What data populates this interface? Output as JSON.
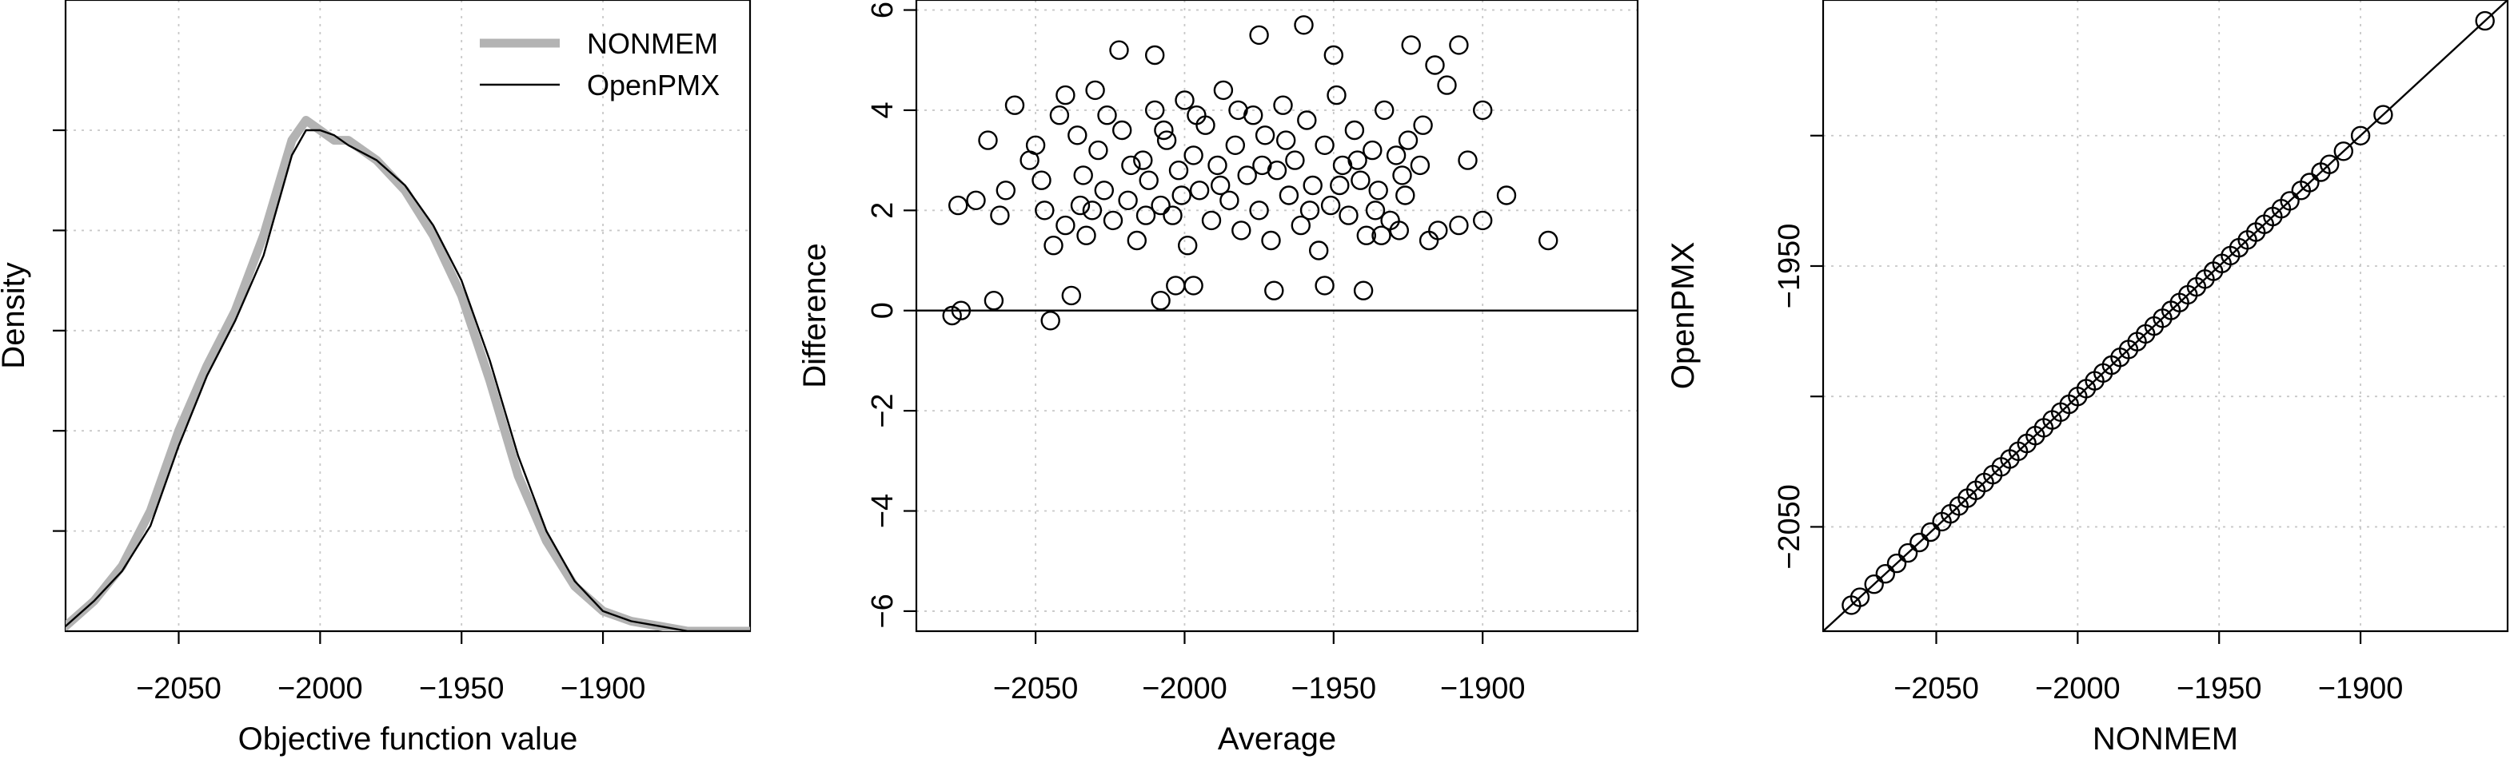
{
  "chart_data": [
    {
      "type": "line",
      "panel": "density",
      "xlabel": "Objective function value",
      "ylabel": "Density",
      "xlim": [
        -2090,
        -1848
      ],
      "ylim": [
        0,
        0.0126
      ],
      "xticks": [
        -2050,
        -2000,
        -1950,
        -1900
      ],
      "xtick_labels": [
        "−2050",
        "−2000",
        "−1950",
        "−1900"
      ],
      "yticks": [
        0.002,
        0.004,
        0.006,
        0.008,
        0.01
      ],
      "show_y_tick_labels": false,
      "grid": true,
      "legend": {
        "position": "top-right",
        "entries": [
          "NONMEM",
          "OpenPMX"
        ]
      },
      "series": [
        {
          "name": "NONMEM",
          "color": "#b3b3b3",
          "x": [
            -2090,
            -2080,
            -2070,
            -2060,
            -2050,
            -2040,
            -2030,
            -2020,
            -2010,
            -2005,
            -2000,
            -1995,
            -1990,
            -1980,
            -1970,
            -1960,
            -1950,
            -1940,
            -1930,
            -1920,
            -1910,
            -1900,
            -1890,
            -1880,
            -1870,
            -1860,
            -1848
          ],
          "y": [
            0.0001,
            0.0006,
            0.0013,
            0.0024,
            0.004,
            0.0053,
            0.0064,
            0.0079,
            0.0098,
            0.0102,
            0.01,
            0.0098,
            0.0098,
            0.0094,
            0.0088,
            0.0079,
            0.0067,
            0.005,
            0.0031,
            0.0018,
            0.0009,
            0.0004,
            0.0002,
            0.0001,
            0.0,
            0.0,
            0.0
          ]
        },
        {
          "name": "OpenPMX",
          "color": "#000000",
          "x": [
            -2090,
            -2080,
            -2070,
            -2060,
            -2050,
            -2040,
            -2030,
            -2020,
            -2010,
            -2005,
            -2000,
            -1995,
            -1990,
            -1980,
            -1970,
            -1960,
            -1950,
            -1940,
            -1930,
            -1920,
            -1910,
            -1900,
            -1890,
            -1880,
            -1870,
            -1860,
            -1848
          ],
          "y": [
            0.0001,
            0.0006,
            0.0012,
            0.0021,
            0.0037,
            0.0051,
            0.0062,
            0.0075,
            0.0095,
            0.01,
            0.01,
            0.0099,
            0.0097,
            0.0094,
            0.0089,
            0.0081,
            0.007,
            0.0054,
            0.0035,
            0.002,
            0.001,
            0.0004,
            0.0002,
            0.0001,
            0.0,
            0.0,
            0.0
          ]
        }
      ]
    },
    {
      "type": "scatter",
      "panel": "bland-altman",
      "xlabel": "Average",
      "ylabel": "Difference",
      "xlim": [
        -2090,
        -1848
      ],
      "ylim": [
        -6.4,
        6.2
      ],
      "xticks": [
        -2050,
        -2000,
        -1950,
        -1900
      ],
      "xtick_labels": [
        "−2050",
        "−2000",
        "−1950",
        "−1900"
      ],
      "yticks": [
        -6,
        -4,
        -2,
        0,
        2,
        4,
        6
      ],
      "ytick_labels": [
        "−6",
        "−4",
        "−2",
        "0",
        "2",
        "4",
        "6"
      ],
      "hline": 0,
      "grid": true,
      "points": [
        [
          -2078,
          -0.1
        ],
        [
          -2075,
          0.0
        ],
        [
          -2076,
          2.1
        ],
        [
          -2070,
          2.2
        ],
        [
          -2066,
          3.4
        ],
        [
          -2064,
          0.2
        ],
        [
          -2062,
          1.9
        ],
        [
          -2060,
          2.4
        ],
        [
          -2057,
          4.1
        ],
        [
          -2045,
          -0.2
        ],
        [
          -2038,
          0.3
        ],
        [
          -1878,
          1.4
        ],
        [
          -1892,
          2.3
        ],
        [
          -1900,
          4.0
        ],
        [
          -1905,
          3.0
        ],
        [
          -1908,
          5.3
        ],
        [
          -1912,
          4.5
        ],
        [
          -1916,
          4.9
        ],
        [
          -1920,
          3.7
        ],
        [
          -1924,
          5.3
        ],
        [
          -2022,
          5.2
        ],
        [
          -2010,
          5.1
        ],
        [
          -1960,
          5.7
        ],
        [
          -1975,
          5.5
        ],
        [
          -1950,
          5.1
        ],
        [
          -2040,
          4.3
        ],
        [
          -2030,
          4.4
        ],
        [
          -2008,
          0.2
        ],
        [
          -2003,
          0.5
        ],
        [
          -1997,
          0.5
        ],
        [
          -1970,
          0.4
        ],
        [
          -1953,
          0.5
        ],
        [
          -1940,
          0.4
        ],
        [
          -1934,
          1.5
        ],
        [
          -1928,
          1.6
        ],
        [
          -1915,
          1.6
        ],
        [
          -1908,
          1.7
        ],
        [
          -1900,
          1.8
        ],
        [
          -2044,
          1.3
        ],
        [
          -2040,
          1.7
        ],
        [
          -2052,
          3.0
        ],
        [
          -2048,
          2.6
        ],
        [
          -2035,
          2.1
        ],
        [
          -2050,
          3.3
        ],
        [
          -2047,
          2.0
        ],
        [
          -2042,
          3.9
        ],
        [
          -2034,
          2.7
        ],
        [
          -2033,
          1.5
        ],
        [
          -2029,
          3.2
        ],
        [
          -2027,
          2.4
        ],
        [
          -2024,
          1.8
        ],
        [
          -2021,
          3.6
        ],
        [
          -2019,
          2.2
        ],
        [
          -2016,
          1.4
        ],
        [
          -2014,
          3.0
        ],
        [
          -2012,
          2.6
        ],
        [
          -2010,
          4.0
        ],
        [
          -2008,
          2.1
        ],
        [
          -2006,
          3.4
        ],
        [
          -2004,
          1.9
        ],
        [
          -2002,
          2.8
        ],
        [
          -2000,
          4.2
        ],
        [
          -1999,
          1.3
        ],
        [
          -1997,
          3.1
        ],
        [
          -1995,
          2.4
        ],
        [
          -1993,
          3.7
        ],
        [
          -1991,
          1.8
        ],
        [
          -1989,
          2.9
        ],
        [
          -1987,
          4.4
        ],
        [
          -1985,
          2.2
        ],
        [
          -1983,
          3.3
        ],
        [
          -1981,
          1.6
        ],
        [
          -1979,
          2.7
        ],
        [
          -1977,
          3.9
        ],
        [
          -1975,
          2.0
        ],
        [
          -1973,
          3.5
        ],
        [
          -1971,
          1.4
        ],
        [
          -1969,
          2.8
        ],
        [
          -1967,
          4.1
        ],
        [
          -1965,
          2.3
        ],
        [
          -1963,
          3.0
        ],
        [
          -1961,
          1.7
        ],
        [
          -1959,
          3.8
        ],
        [
          -1957,
          2.5
        ],
        [
          -1955,
          1.2
        ],
        [
          -1953,
          3.3
        ],
        [
          -1951,
          2.1
        ],
        [
          -1949,
          4.3
        ],
        [
          -1947,
          2.9
        ],
        [
          -1945,
          1.9
        ],
        [
          -1943,
          3.6
        ],
        [
          -1941,
          2.6
        ],
        [
          -1939,
          1.5
        ],
        [
          -1937,
          3.2
        ],
        [
          -1935,
          2.4
        ],
        [
          -1933,
          4.0
        ],
        [
          -1931,
          1.8
        ],
        [
          -1929,
          3.1
        ],
        [
          -1927,
          2.7
        ],
        [
          -1925,
          3.4
        ],
        [
          -1921,
          2.9
        ],
        [
          -1918,
          1.4
        ],
        [
          -2036,
          3.5
        ],
        [
          -2031,
          2.0
        ],
        [
          -2026,
          3.9
        ],
        [
          -2018,
          2.9
        ],
        [
          -2013,
          1.9
        ],
        [
          -2007,
          3.6
        ],
        [
          -2001,
          2.3
        ],
        [
          -1996,
          3.9
        ],
        [
          -1988,
          2.5
        ],
        [
          -1982,
          4.0
        ],
        [
          -1974,
          2.9
        ],
        [
          -1966,
          3.4
        ],
        [
          -1958,
          2.0
        ],
        [
          -1948,
          2.5
        ],
        [
          -1942,
          3.0
        ],
        [
          -1936,
          2.0
        ],
        [
          -1926,
          2.3
        ]
      ]
    },
    {
      "type": "scatter",
      "panel": "agreement",
      "xlabel": "NONMEM",
      "ylabel": "OpenPMX",
      "xlim": [
        -2090,
        -1848
      ],
      "ylim": [
        -2090,
        -1848
      ],
      "xticks": [
        -2050,
        -2000,
        -1950,
        -1900
      ],
      "xtick_labels": [
        "−2050",
        "−2000",
        "−1950",
        "−1900"
      ],
      "yticks": [
        -2050,
        -2000,
        -1950,
        -1900
      ],
      "ytick_labels": [
        "−2050",
        "",
        "−1950",
        ""
      ],
      "identity_line": true,
      "grid": true,
      "points": [
        [
          -2080,
          -2080
        ],
        [
          -2077,
          -2077
        ],
        [
          -2072,
          -2072
        ],
        [
          -2068,
          -2068
        ],
        [
          -2064,
          -2064
        ],
        [
          -2060,
          -2060
        ],
        [
          -2056,
          -2056
        ],
        [
          -2052,
          -2052
        ],
        [
          -2048,
          -2048
        ],
        [
          -2045,
          -2045
        ],
        [
          -2042,
          -2042
        ],
        [
          -2039,
          -2039
        ],
        [
          -2036,
          -2036
        ],
        [
          -2033,
          -2033
        ],
        [
          -2030,
          -2030
        ],
        [
          -2027,
          -2027
        ],
        [
          -2024,
          -2024
        ],
        [
          -2021,
          -2021
        ],
        [
          -2018,
          -2018
        ],
        [
          -2015,
          -2015
        ],
        [
          -2012,
          -2012
        ],
        [
          -2009,
          -2009
        ],
        [
          -2006,
          -2006
        ],
        [
          -2003,
          -2003
        ],
        [
          -2000,
          -2000
        ],
        [
          -1997,
          -1997
        ],
        [
          -1994,
          -1994
        ],
        [
          -1991,
          -1991
        ],
        [
          -1988,
          -1988
        ],
        [
          -1985,
          -1985
        ],
        [
          -1982,
          -1982
        ],
        [
          -1979,
          -1979
        ],
        [
          -1976,
          -1976
        ],
        [
          -1973,
          -1973
        ],
        [
          -1970,
          -1970
        ],
        [
          -1967,
          -1967
        ],
        [
          -1964,
          -1964
        ],
        [
          -1961,
          -1961
        ],
        [
          -1958,
          -1958
        ],
        [
          -1955,
          -1955
        ],
        [
          -1952,
          -1952
        ],
        [
          -1949,
          -1949
        ],
        [
          -1946,
          -1946
        ],
        [
          -1943,
          -1943
        ],
        [
          -1940,
          -1940
        ],
        [
          -1937,
          -1937
        ],
        [
          -1934,
          -1934
        ],
        [
          -1931,
          -1931
        ],
        [
          -1928,
          -1928
        ],
        [
          -1925,
          -1925
        ],
        [
          -1921,
          -1921
        ],
        [
          -1918,
          -1918
        ],
        [
          -1914,
          -1914
        ],
        [
          -1911,
          -1911
        ],
        [
          -1906,
          -1906
        ],
        [
          -1900,
          -1900
        ],
        [
          -1892,
          -1892
        ],
        [
          -1856,
          -1856
        ]
      ]
    }
  ]
}
